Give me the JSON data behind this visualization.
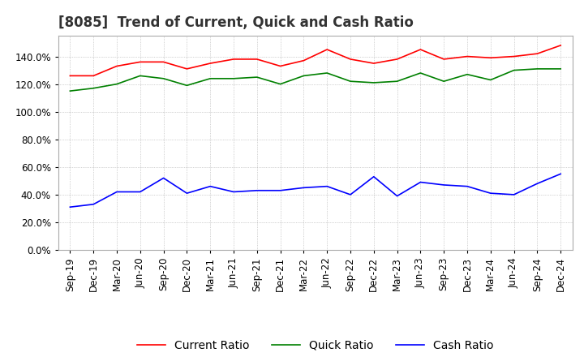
{
  "title": "[8085]  Trend of Current, Quick and Cash Ratio",
  "x_labels": [
    "Sep-19",
    "Dec-19",
    "Mar-20",
    "Jun-20",
    "Sep-20",
    "Dec-20",
    "Mar-21",
    "Jun-21",
    "Sep-21",
    "Dec-21",
    "Mar-22",
    "Jun-22",
    "Sep-22",
    "Dec-22",
    "Mar-23",
    "Jun-23",
    "Sep-23",
    "Dec-23",
    "Mar-24",
    "Jun-24",
    "Sep-24",
    "Dec-24"
  ],
  "current_ratio": [
    126.0,
    126.0,
    133.0,
    136.0,
    136.0,
    131.0,
    135.0,
    138.0,
    138.0,
    133.0,
    137.0,
    145.0,
    138.0,
    135.0,
    138.0,
    145.0,
    138.0,
    140.0,
    139.0,
    140.0,
    142.0,
    148.0
  ],
  "quick_ratio": [
    115.0,
    117.0,
    120.0,
    126.0,
    124.0,
    119.0,
    124.0,
    124.0,
    125.0,
    120.0,
    126.0,
    128.0,
    122.0,
    121.0,
    122.0,
    128.0,
    122.0,
    127.0,
    123.0,
    130.0,
    131.0,
    131.0
  ],
  "cash_ratio": [
    31.0,
    33.0,
    42.0,
    42.0,
    52.0,
    41.0,
    46.0,
    42.0,
    43.0,
    43.0,
    45.0,
    46.0,
    40.0,
    53.0,
    39.0,
    49.0,
    47.0,
    46.0,
    41.0,
    40.0,
    48.0,
    55.0
  ],
  "current_color": "#ff0000",
  "quick_color": "#008000",
  "cash_color": "#0000ff",
  "ylim": [
    0.0,
    155.0
  ],
  "yticks": [
    0.0,
    20.0,
    40.0,
    60.0,
    80.0,
    100.0,
    120.0,
    140.0
  ],
  "background_color": "#ffffff",
  "grid_color": "#aaaaaa",
  "title_fontsize": 12,
  "legend_fontsize": 10,
  "tick_fontsize": 8.5
}
